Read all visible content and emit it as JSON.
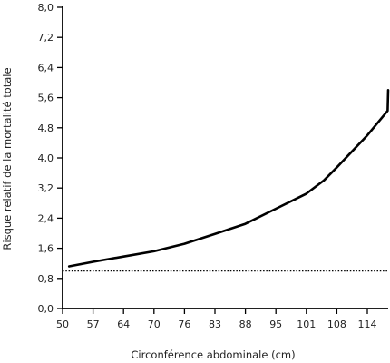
{
  "chart_data": {
    "type": "line",
    "title": "",
    "xlabel": "Circonférence abdominale (cm)",
    "ylabel": "Risque relatif de la mortalité totale",
    "x_ticks": [
      "50",
      "57",
      "64",
      "70",
      "76",
      "83",
      "88",
      "95",
      "101",
      "108",
      "114"
    ],
    "y_ticks": [
      "0,0",
      "0,8",
      "1,6",
      "2,4",
      "3,2",
      "4,0",
      "4,8",
      "5,6",
      "6,4",
      "7,2",
      "8,0"
    ],
    "xlim": [
      50,
      120
    ],
    "ylim": [
      0,
      8
    ],
    "grid": false,
    "series": [
      {
        "style": "solid",
        "color": "#000000",
        "x": [
          51.5,
          57,
          64,
          70,
          76,
          83,
          88,
          95,
          101,
          105,
          108,
          114,
          118,
          120.5
        ],
        "y": [
          1.12,
          1.24,
          1.38,
          1.52,
          1.72,
          1.98,
          2.25,
          2.65,
          3.05,
          3.4,
          3.75,
          4.6,
          5.25,
          5.8
        ]
      },
      {
        "style": "dotted",
        "color": "#000000",
        "x": [
          50,
          120.5
        ],
        "y": [
          1.0,
          1.0
        ]
      }
    ]
  }
}
